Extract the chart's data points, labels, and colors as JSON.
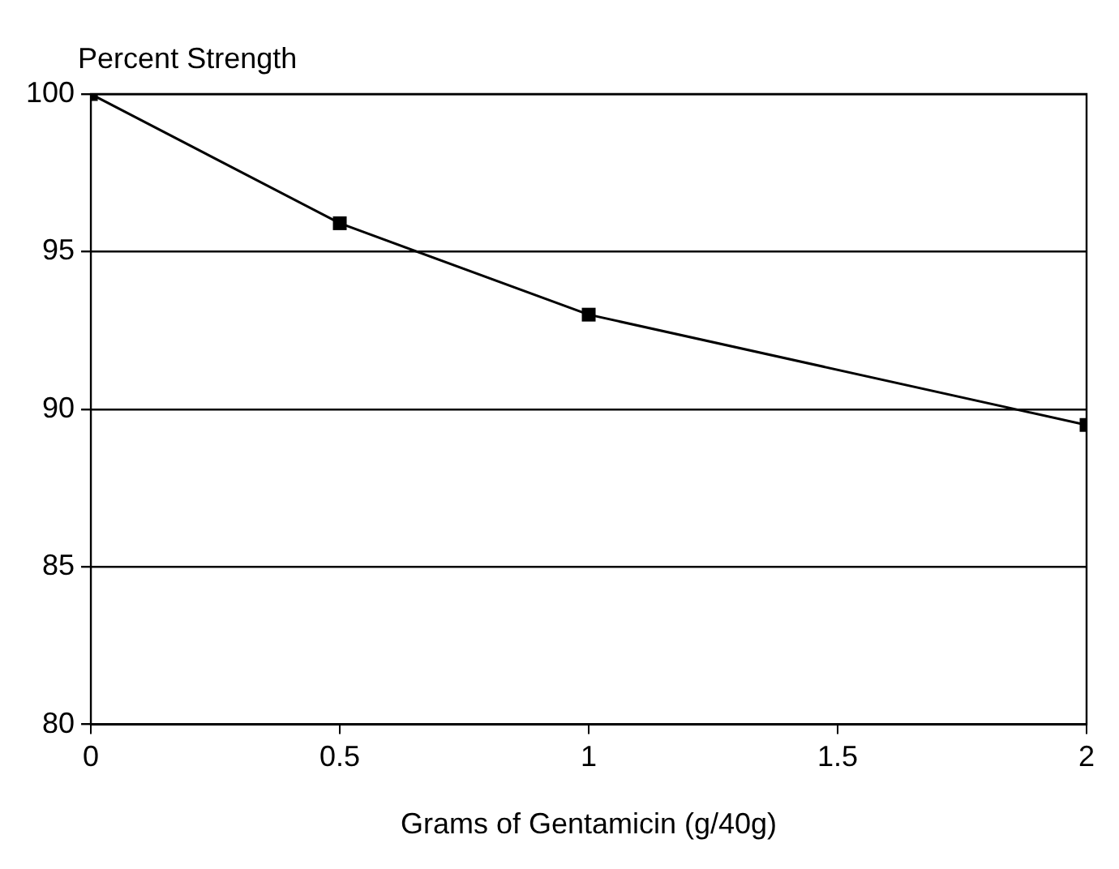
{
  "chart_data": {
    "type": "line",
    "xlabel": "Grams of Gentamicin (g/40g)",
    "ylabel": "Percent Strength",
    "x": [
      0,
      0.5,
      1,
      2
    ],
    "series": [
      {
        "color": "#000000",
        "values": [
          100,
          95.9,
          93,
          89.5
        ]
      }
    ],
    "xlim": [
      0,
      2
    ],
    "xticks": [
      0,
      0.5,
      1,
      1.5,
      2
    ],
    "ylim": [
      80,
      100
    ],
    "yticks": [
      80,
      85,
      90,
      95,
      100
    ],
    "grid": "y",
    "legend": false,
    "marker": "square",
    "line_style": "solid"
  }
}
